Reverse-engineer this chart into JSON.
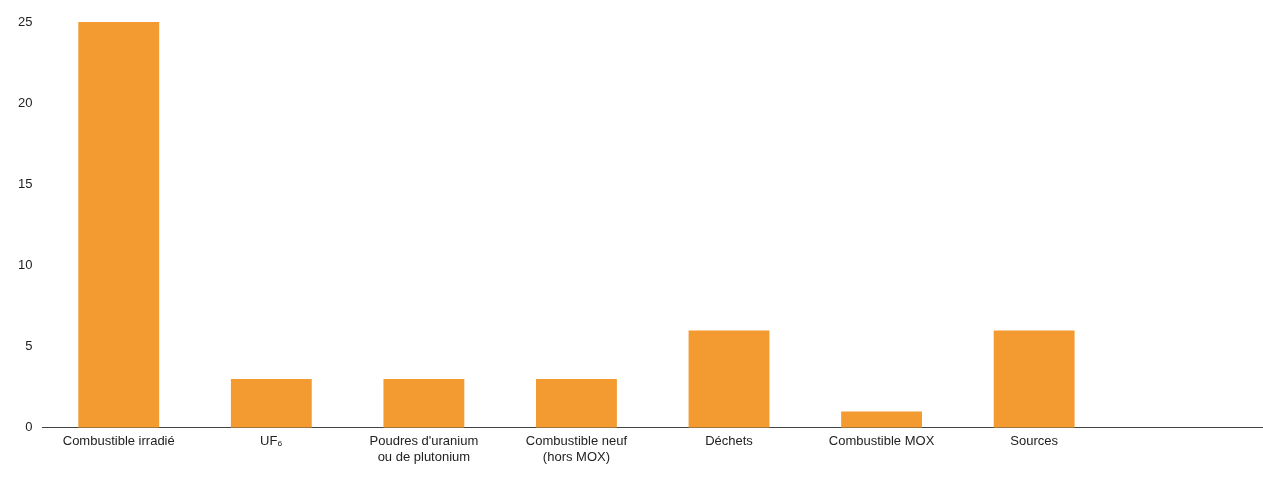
{
  "chart_data": {
    "type": "bar",
    "categories": [
      "Combustible irradié",
      "UF₆",
      "Poudres d'uranium ou de plutonium",
      "Combustible neuf (hors MOX)",
      "Déchets",
      "Combustible MOX",
      "Sources",
      null
    ],
    "values": [
      25,
      3,
      3,
      3,
      6,
      1,
      6,
      null
    ],
    "color": "#f39a31",
    "ylim": [
      0,
      25
    ],
    "yticks": [
      0,
      5,
      10,
      15,
      20,
      25
    ],
    "grid": false,
    "legend": false
  }
}
